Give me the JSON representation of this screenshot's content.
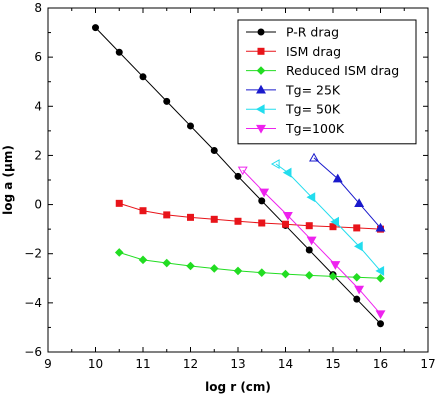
{
  "chart_data": {
    "type": "line",
    "xlabel": "log r (cm)",
    "ylabel": "log a (μm)",
    "xlim": [
      9,
      17
    ],
    "ylim": [
      -6,
      8
    ],
    "xticks": [
      9,
      10,
      11,
      12,
      13,
      14,
      15,
      16,
      17
    ],
    "yticks": [
      -6,
      -4,
      -2,
      0,
      2,
      4,
      6,
      8
    ],
    "grid": false,
    "legend_position": "top-right",
    "series": [
      {
        "name": "P-R drag",
        "color": "#000000",
        "marker": "circle",
        "filled": true,
        "x": [
          10,
          10.5,
          11,
          11.5,
          12,
          12.5,
          13,
          13.5,
          14,
          14.5,
          15,
          15.5,
          16
        ],
        "y": [
          7.2,
          6.2,
          5.2,
          4.2,
          3.2,
          2.2,
          1.15,
          0.15,
          -0.85,
          -1.85,
          -2.85,
          -3.85,
          -4.85
        ]
      },
      {
        "name": "ISM drag",
        "color": "#e8141a",
        "marker": "square",
        "filled": true,
        "x": [
          10.5,
          11,
          11.5,
          12,
          12.5,
          13,
          13.5,
          14,
          14.5,
          15,
          15.5,
          16
        ],
        "y": [
          0.05,
          -0.25,
          -0.42,
          -0.52,
          -0.6,
          -0.68,
          -0.75,
          -0.8,
          -0.86,
          -0.9,
          -0.95,
          -1.0
        ]
      },
      {
        "name": "Reduced ISM drag",
        "color": "#22dd22",
        "marker": "diamond",
        "filled": true,
        "x": [
          10.5,
          11,
          11.5,
          12,
          12.5,
          13,
          13.5,
          14,
          14.5,
          15,
          15.5,
          16
        ],
        "y": [
          -1.95,
          -2.25,
          -2.38,
          -2.5,
          -2.6,
          -2.7,
          -2.77,
          -2.83,
          -2.88,
          -2.92,
          -2.96,
          -3.0
        ]
      },
      {
        "name": "Tg=  25K",
        "color": "#1a1acc",
        "marker": "triangle-up",
        "filled": true,
        "x": [
          14.6,
          15.1,
          15.55,
          16
        ],
        "y": [
          1.9,
          1.05,
          0.05,
          -0.95
        ]
      },
      {
        "name": "Tg=  50K",
        "color": "#22ddee",
        "marker": "triangle-left",
        "filled": true,
        "x": [
          13.8,
          14.05,
          14.55,
          15.05,
          15.55,
          16
        ],
        "y": [
          1.65,
          1.3,
          0.3,
          -0.7,
          -1.7,
          -2.7
        ]
      },
      {
        "name": "Tg=100K",
        "color": "#ee22ee",
        "marker": "triangle-down",
        "filled": true,
        "x": [
          13.1,
          13.55,
          14.05,
          14.55,
          15.05,
          15.55,
          16
        ],
        "y": [
          1.4,
          0.5,
          -0.45,
          -1.45,
          -2.45,
          -3.45,
          -4.45
        ]
      }
    ]
  }
}
